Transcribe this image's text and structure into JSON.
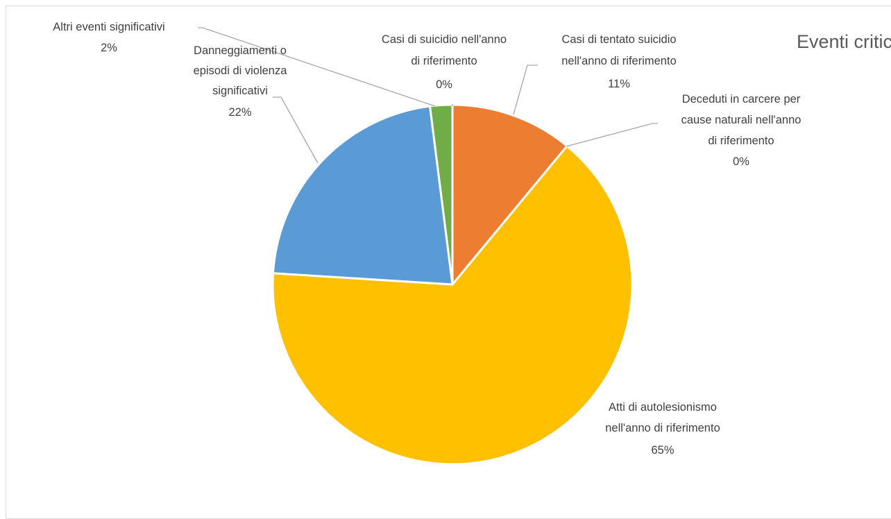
{
  "chart_data": {
    "type": "pie",
    "title": "Eventi critici",
    "slices": [
      {
        "label": "Casi di suicidio nell'anno di riferimento",
        "value": 0,
        "percent_label": "0%",
        "color": "#4472C4"
      },
      {
        "label": "Casi di tentato suicidio nell'anno di riferimento",
        "value": 11,
        "percent_label": "11%",
        "color": "#ED7D31"
      },
      {
        "label": "Deceduti in carcere per cause naturali nell'anno di riferimento",
        "value": 0,
        "percent_label": "0%",
        "color": "#A5A5A5"
      },
      {
        "label": "Atti di autolesionismo nell'anno di riferimento",
        "value": 65,
        "percent_label": "65%",
        "color": "#FFC000"
      },
      {
        "label": "Danneggiamenti o episodi di violenza significativi",
        "value": 22,
        "percent_label": "22%",
        "color": "#5B9BD5"
      },
      {
        "label": "Altri eventi significativi",
        "value": 2,
        "percent_label": "2%",
        "color": "#70AD47"
      }
    ]
  }
}
